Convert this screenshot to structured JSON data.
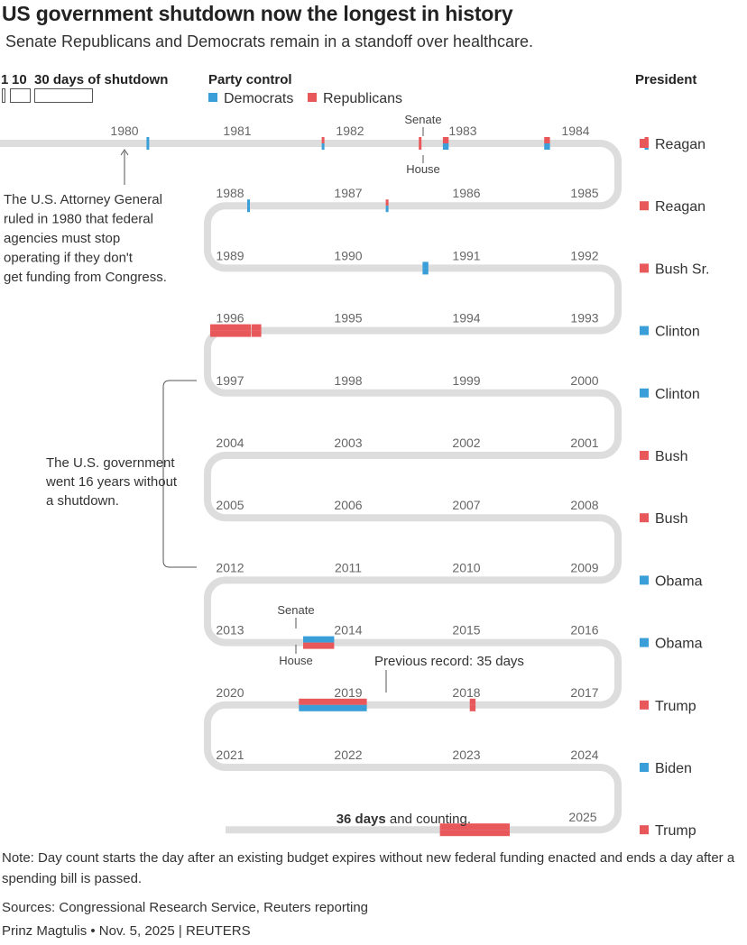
{
  "title": "US government shutdown now the longest in history",
  "subtitle": "Senate Republicans and Democrats remain in a standoff over healthcare.",
  "legend": {
    "scale_label_1": "1",
    "scale_label_10": "10",
    "scale_label_30": "30 days of shutdown",
    "party_title": "Party control",
    "democrats": "Democrats",
    "republicans": "Republicans",
    "president_title": "President"
  },
  "colors": {
    "democrats": "#3a9fd8",
    "republicans": "#e8575a",
    "track": "#dddddd"
  },
  "annotations": {
    "ag_ruling": "The U.S. Attorney General ruled in 1980 that federal agencies must stop operating if they don't get funding from Congress.",
    "no_shutdown": "The U.S. government went 16 years without a shutdown.",
    "previous_record": "Previous record: 35 days",
    "current_bold": "36 days",
    "current_rest": " and counting.",
    "senate": "Senate",
    "house": "House"
  },
  "chart_data": {
    "type": "timeline",
    "rows": [
      {
        "years": [
          "1980",
          "1981",
          "1982",
          "1983",
          "1984"
        ],
        "president": "Reagan",
        "party": "republicans"
      },
      {
        "years": [
          "1988",
          "1987",
          "1986",
          "1985"
        ],
        "president": "Reagan",
        "party": "republicans"
      },
      {
        "years": [
          "1989",
          "1990",
          "1991",
          "1992"
        ],
        "president": "Bush Sr.",
        "party": "republicans"
      },
      {
        "years": [
          "1996",
          "1995",
          "1994",
          "1993"
        ],
        "president": "Clinton",
        "party": "democrats"
      },
      {
        "years": [
          "1997",
          "1998",
          "1999",
          "2000"
        ],
        "president": "Clinton",
        "party": "democrats"
      },
      {
        "years": [
          "2004",
          "2003",
          "2002",
          "2001"
        ],
        "president": "Bush",
        "party": "republicans"
      },
      {
        "years": [
          "2005",
          "2006",
          "2007",
          "2008"
        ],
        "president": "Bush",
        "party": "republicans"
      },
      {
        "years": [
          "2012",
          "2011",
          "2010",
          "2009"
        ],
        "president": "Obama",
        "party": "democrats"
      },
      {
        "years": [
          "2013",
          "2014",
          "2015",
          "2016"
        ],
        "president": "Obama",
        "party": "democrats"
      },
      {
        "years": [
          "2020",
          "2019",
          "2018",
          "2017"
        ],
        "president": "Trump",
        "party": "republicans"
      },
      {
        "years": [
          "2021",
          "2022",
          "2023",
          "2024"
        ],
        "president": "Biden",
        "party": "democrats"
      },
      {
        "years": [
          "2025"
        ],
        "president": "Trump",
        "party": "republicans"
      }
    ],
    "shutdowns": [
      {
        "start": "1980-05-01",
        "days": 1,
        "top": "democrats",
        "bottom": "democrats"
      },
      {
        "start": "1981-11-20",
        "days": 1,
        "top": "republicans",
        "bottom": "democrats"
      },
      {
        "start": "1982-09-30",
        "days": 1,
        "top": "republicans",
        "bottom": "republicans"
      },
      {
        "start": "1982-12-17",
        "days": 3,
        "top": "republicans",
        "bottom": "democrats"
      },
      {
        "start": "1983-11-10",
        "days": 3,
        "top": "republicans",
        "bottom": "democrats"
      },
      {
        "start": "1984-09-30",
        "days": 2,
        "top": "republicans",
        "bottom": "democrats"
      },
      {
        "start": "1984-10-03",
        "days": 1,
        "top": "republicans",
        "bottom": "democrats"
      },
      {
        "start": "1986-10-16",
        "days": 1,
        "top": "republicans",
        "bottom": "democrats"
      },
      {
        "start": "1987-12-18",
        "days": 1,
        "top": "democrats",
        "bottom": "democrats"
      },
      {
        "start": "1990-10-05",
        "days": 3,
        "top": "democrats",
        "bottom": "democrats"
      },
      {
        "start": "1995-11-13",
        "days": 5,
        "top": "republicans",
        "bottom": "republicans"
      },
      {
        "start": "1995-12-15",
        "days": 21,
        "top": "republicans",
        "bottom": "republicans"
      },
      {
        "start": "2013-10-01",
        "days": 16,
        "top": "democrats",
        "bottom": "republicans"
      },
      {
        "start": "2018-01-20",
        "days": 3,
        "top": "republicans",
        "bottom": "republicans"
      },
      {
        "start": "2018-12-22",
        "days": 35,
        "top": "republicans",
        "bottom": "democrats"
      },
      {
        "start": "2025-10-01",
        "days": 36,
        "top": "republicans",
        "bottom": "republicans"
      }
    ]
  },
  "note": "Note: Day count starts the day after an existing budget expires without new federal funding enacted and ends a day after a spending bill is passed.",
  "sources": "Sources: Congressional Research Service, Reuters reporting",
  "credit": "Prinz Magtulis • Nov. 5, 2025 | REUTERS"
}
